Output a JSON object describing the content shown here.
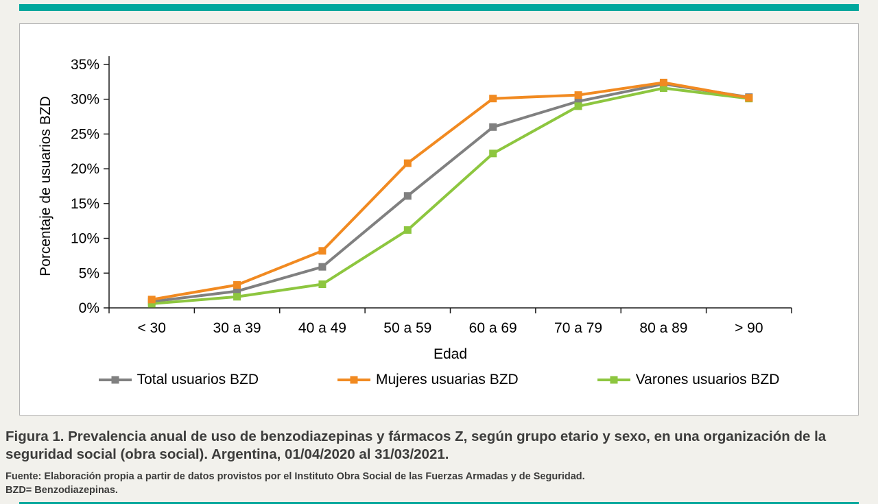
{
  "page": {
    "accent_color": "#00a79c",
    "background_color": "#f2f1ec"
  },
  "chart_data": {
    "type": "line",
    "title": "",
    "xlabel": "Edad",
    "ylabel": "Porcentaje de usuarios BZD",
    "categories": [
      "< 30",
      "30 a 39",
      "40 a 49",
      "50 a 59",
      "60 a 69",
      "70 a 79",
      "80 a 89",
      "> 90"
    ],
    "y_ticks": [
      "0%",
      "5%",
      "10%",
      "15%",
      "20%",
      "25%",
      "30%",
      "35%"
    ],
    "ylim": [
      0,
      35
    ],
    "grid": false,
    "legend_position": "bottom",
    "marker": "square",
    "series": [
      {
        "name": "Total usuarios BZD",
        "color": "#808080",
        "values": [
          0.9,
          2.4,
          5.9,
          16.1,
          26.0,
          29.7,
          32.2,
          30.3
        ]
      },
      {
        "name": "Mujeres usuarias BZD",
        "color": "#F18A21",
        "values": [
          1.2,
          3.3,
          8.2,
          20.8,
          30.1,
          30.6,
          32.4,
          30.2
        ]
      },
      {
        "name": "Varones usuarios BZD",
        "color": "#8DC63F",
        "values": [
          0.6,
          1.6,
          3.4,
          11.2,
          22.2,
          29.0,
          31.6,
          30.1
        ]
      }
    ]
  },
  "caption": {
    "figure": "Figura 1. Prevalencia anual de uso de benzodiazepinas y fármacos Z, según grupo etario y sexo, en una organización de la seguridad social (obra social). Argentina, 01/04/2020 al 31/03/2021.",
    "source": "Fuente: Elaboración propia a partir de datos provistos por el Instituto Obra Social de las Fuerzas Armadas y de Seguridad.",
    "note": "BZD= Benzodiazepinas."
  }
}
